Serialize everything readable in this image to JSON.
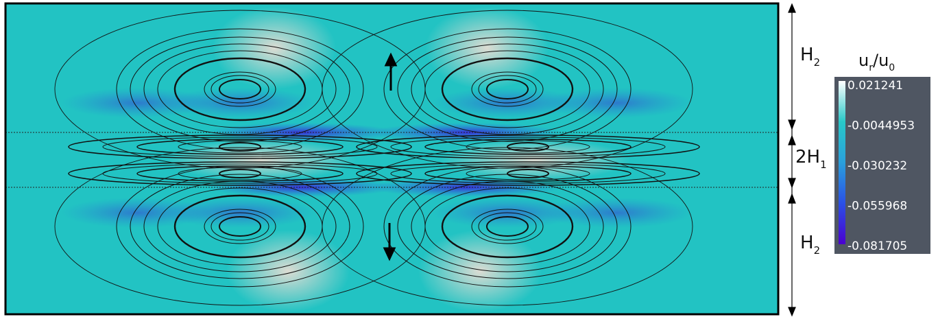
{
  "dimensions": [
    {
      "main": "H",
      "sub": "2"
    },
    {
      "main": "2H",
      "sub": "1"
    },
    {
      "main": "H",
      "sub": "2"
    }
  ],
  "colorbar": {
    "title": {
      "main": "u",
      "sub": "r",
      "main2": "/u",
      "sub2": "0"
    },
    "ticks": [
      "0.021241",
      "-0.0044953",
      "-0.030232",
      "-0.055968",
      "-0.081705"
    ]
  }
}
